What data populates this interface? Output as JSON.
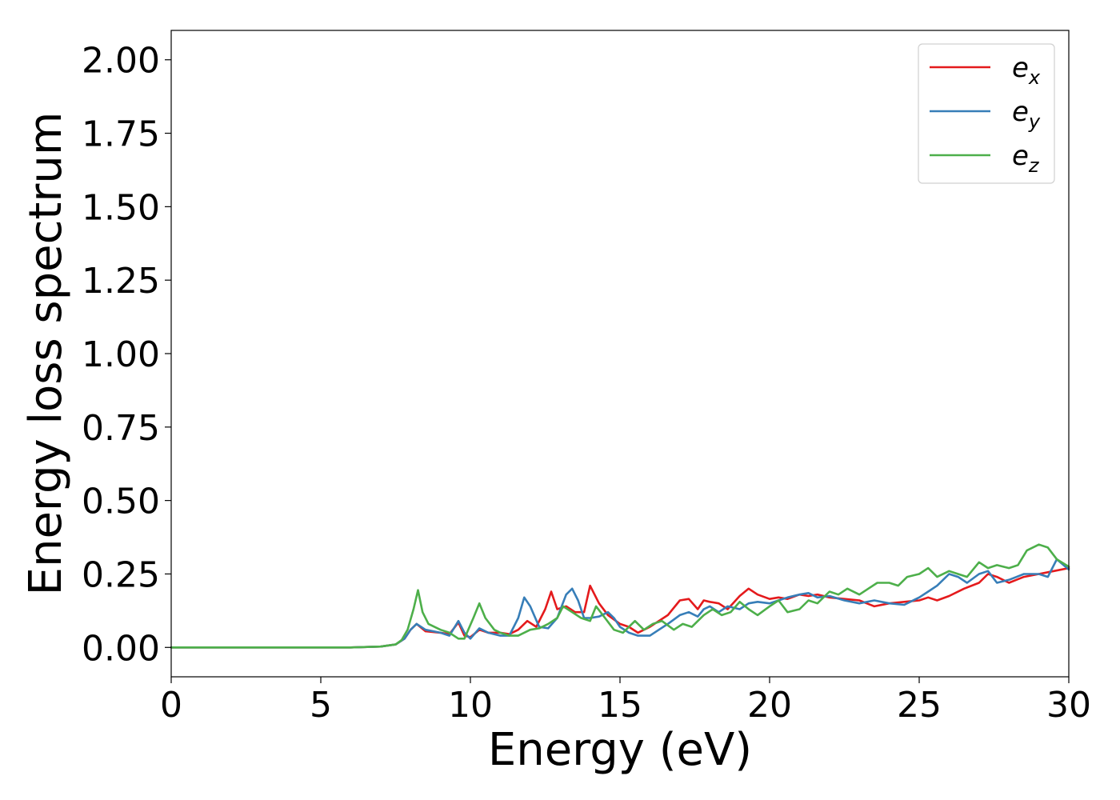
{
  "chart_data": {
    "type": "line",
    "title": "",
    "xlabel": "Energy (eV)",
    "ylabel": "Energy loss spectrum",
    "xlim": [
      0,
      30
    ],
    "ylim": [
      -0.1,
      2.1
    ],
    "xticks": [
      0,
      5,
      10,
      15,
      20,
      25,
      30
    ],
    "yticks": [
      0.0,
      0.25,
      0.5,
      0.75,
      1.0,
      1.25,
      1.5,
      1.75,
      2.0
    ],
    "xtick_labels": [
      "0",
      "5",
      "10",
      "15",
      "20",
      "25",
      "30"
    ],
    "ytick_labels": [
      "0.00",
      "0.25",
      "0.50",
      "0.75",
      "1.00",
      "1.25",
      "1.50",
      "1.75",
      "2.00"
    ],
    "grid": false,
    "legend_position": "top-right",
    "series": [
      {
        "name": "ex",
        "label_base": "e",
        "label_sub": "x",
        "color": "#e41a1c",
        "points": [
          [
            0,
            0
          ],
          [
            6,
            0
          ],
          [
            7,
            0.003
          ],
          [
            7.5,
            0.01
          ],
          [
            7.8,
            0.03
          ],
          [
            8.0,
            0.06
          ],
          [
            8.2,
            0.08
          ],
          [
            8.5,
            0.055
          ],
          [
            9,
            0.05
          ],
          [
            9.3,
            0.045
          ],
          [
            9.6,
            0.085
          ],
          [
            9.8,
            0.04
          ],
          [
            10,
            0.035
          ],
          [
            10.3,
            0.06
          ],
          [
            10.6,
            0.05
          ],
          [
            11,
            0.05
          ],
          [
            11.3,
            0.045
          ],
          [
            11.6,
            0.06
          ],
          [
            11.9,
            0.09
          ],
          [
            12.2,
            0.07
          ],
          [
            12.5,
            0.13
          ],
          [
            12.7,
            0.19
          ],
          [
            12.9,
            0.13
          ],
          [
            13.2,
            0.14
          ],
          [
            13.5,
            0.12
          ],
          [
            13.8,
            0.12
          ],
          [
            14,
            0.21
          ],
          [
            14.3,
            0.15
          ],
          [
            14.6,
            0.11
          ],
          [
            15,
            0.08
          ],
          [
            15.3,
            0.07
          ],
          [
            15.6,
            0.05
          ],
          [
            16,
            0.07
          ],
          [
            16.3,
            0.09
          ],
          [
            16.6,
            0.11
          ],
          [
            17,
            0.16
          ],
          [
            17.3,
            0.165
          ],
          [
            17.6,
            0.13
          ],
          [
            17.8,
            0.16
          ],
          [
            18,
            0.155
          ],
          [
            18.3,
            0.15
          ],
          [
            18.6,
            0.13
          ],
          [
            19,
            0.175
          ],
          [
            19.3,
            0.2
          ],
          [
            19.6,
            0.18
          ],
          [
            20,
            0.165
          ],
          [
            20.3,
            0.17
          ],
          [
            20.6,
            0.165
          ],
          [
            21,
            0.18
          ],
          [
            21.3,
            0.175
          ],
          [
            21.6,
            0.18
          ],
          [
            22,
            0.17
          ],
          [
            22.5,
            0.165
          ],
          [
            23,
            0.16
          ],
          [
            23.5,
            0.14
          ],
          [
            24,
            0.15
          ],
          [
            24.5,
            0.155
          ],
          [
            25,
            0.16
          ],
          [
            25.3,
            0.17
          ],
          [
            25.6,
            0.16
          ],
          [
            26,
            0.175
          ],
          [
            26.5,
            0.2
          ],
          [
            27,
            0.22
          ],
          [
            27.3,
            0.25
          ],
          [
            27.6,
            0.24
          ],
          [
            28,
            0.22
          ],
          [
            28.5,
            0.24
          ],
          [
            29,
            0.25
          ],
          [
            29.5,
            0.26
          ],
          [
            30,
            0.27
          ]
        ]
      },
      {
        "name": "ey",
        "label_base": "e",
        "label_sub": "y",
        "color": "#377eb8",
        "points": [
          [
            0,
            0
          ],
          [
            6,
            0
          ],
          [
            7,
            0.003
          ],
          [
            7.5,
            0.01
          ],
          [
            7.8,
            0.03
          ],
          [
            8.0,
            0.06
          ],
          [
            8.2,
            0.08
          ],
          [
            8.5,
            0.06
          ],
          [
            9,
            0.05
          ],
          [
            9.3,
            0.04
          ],
          [
            9.6,
            0.09
          ],
          [
            9.8,
            0.05
          ],
          [
            10,
            0.03
          ],
          [
            10.3,
            0.065
          ],
          [
            10.6,
            0.05
          ],
          [
            11,
            0.04
          ],
          [
            11.3,
            0.04
          ],
          [
            11.6,
            0.1
          ],
          [
            11.8,
            0.17
          ],
          [
            12,
            0.14
          ],
          [
            12.3,
            0.07
          ],
          [
            12.6,
            0.065
          ],
          [
            12.9,
            0.1
          ],
          [
            13.2,
            0.18
          ],
          [
            13.4,
            0.2
          ],
          [
            13.6,
            0.16
          ],
          [
            13.8,
            0.1
          ],
          [
            14,
            0.1
          ],
          [
            14.3,
            0.105
          ],
          [
            14.6,
            0.12
          ],
          [
            14.8,
            0.1
          ],
          [
            15,
            0.07
          ],
          [
            15.3,
            0.05
          ],
          [
            15.6,
            0.04
          ],
          [
            16,
            0.04
          ],
          [
            16.3,
            0.06
          ],
          [
            16.6,
            0.08
          ],
          [
            17,
            0.11
          ],
          [
            17.3,
            0.12
          ],
          [
            17.6,
            0.105
          ],
          [
            17.8,
            0.13
          ],
          [
            18,
            0.14
          ],
          [
            18.3,
            0.12
          ],
          [
            18.6,
            0.14
          ],
          [
            19,
            0.13
          ],
          [
            19.3,
            0.15
          ],
          [
            19.6,
            0.155
          ],
          [
            20,
            0.15
          ],
          [
            20.3,
            0.16
          ],
          [
            20.6,
            0.17
          ],
          [
            21,
            0.18
          ],
          [
            21.3,
            0.185
          ],
          [
            21.6,
            0.17
          ],
          [
            22,
            0.175
          ],
          [
            22.5,
            0.16
          ],
          [
            23,
            0.15
          ],
          [
            23.5,
            0.16
          ],
          [
            24,
            0.15
          ],
          [
            24.5,
            0.145
          ],
          [
            25,
            0.17
          ],
          [
            25.3,
            0.19
          ],
          [
            25.6,
            0.21
          ],
          [
            26,
            0.25
          ],
          [
            26.3,
            0.24
          ],
          [
            26.6,
            0.22
          ],
          [
            27,
            0.25
          ],
          [
            27.3,
            0.26
          ],
          [
            27.6,
            0.22
          ],
          [
            28,
            0.23
          ],
          [
            28.5,
            0.25
          ],
          [
            29,
            0.25
          ],
          [
            29.3,
            0.24
          ],
          [
            29.6,
            0.3
          ],
          [
            30,
            0.265
          ]
        ]
      },
      {
        "name": "ez",
        "label_base": "e",
        "label_sub": "z",
        "color": "#4daf4a",
        "points": [
          [
            0,
            0
          ],
          [
            6,
            0
          ],
          [
            7,
            0.003
          ],
          [
            7.5,
            0.01
          ],
          [
            7.7,
            0.025
          ],
          [
            7.9,
            0.06
          ],
          [
            8.1,
            0.13
          ],
          [
            8.25,
            0.195
          ],
          [
            8.4,
            0.12
          ],
          [
            8.6,
            0.08
          ],
          [
            9,
            0.06
          ],
          [
            9.3,
            0.05
          ],
          [
            9.6,
            0.03
          ],
          [
            9.8,
            0.03
          ],
          [
            10.1,
            0.1
          ],
          [
            10.3,
            0.15
          ],
          [
            10.5,
            0.1
          ],
          [
            10.8,
            0.06
          ],
          [
            11,
            0.05
          ],
          [
            11.3,
            0.04
          ],
          [
            11.6,
            0.04
          ],
          [
            12,
            0.06
          ],
          [
            12.3,
            0.065
          ],
          [
            12.6,
            0.08
          ],
          [
            12.9,
            0.1
          ],
          [
            13.1,
            0.14
          ],
          [
            13.4,
            0.12
          ],
          [
            13.7,
            0.1
          ],
          [
            14,
            0.09
          ],
          [
            14.2,
            0.14
          ],
          [
            14.5,
            0.1
          ],
          [
            14.8,
            0.06
          ],
          [
            15.1,
            0.05
          ],
          [
            15.5,
            0.09
          ],
          [
            15.8,
            0.06
          ],
          [
            16.1,
            0.08
          ],
          [
            16.4,
            0.09
          ],
          [
            16.8,
            0.06
          ],
          [
            17.1,
            0.08
          ],
          [
            17.4,
            0.07
          ],
          [
            17.8,
            0.11
          ],
          [
            18.1,
            0.13
          ],
          [
            18.4,
            0.11
          ],
          [
            18.7,
            0.12
          ],
          [
            19,
            0.155
          ],
          [
            19.3,
            0.13
          ],
          [
            19.6,
            0.11
          ],
          [
            20,
            0.14
          ],
          [
            20.3,
            0.16
          ],
          [
            20.6,
            0.12
          ],
          [
            21,
            0.13
          ],
          [
            21.3,
            0.16
          ],
          [
            21.6,
            0.15
          ],
          [
            22,
            0.19
          ],
          [
            22.3,
            0.18
          ],
          [
            22.6,
            0.2
          ],
          [
            23,
            0.18
          ],
          [
            23.3,
            0.2
          ],
          [
            23.6,
            0.22
          ],
          [
            24,
            0.22
          ],
          [
            24.3,
            0.21
          ],
          [
            24.6,
            0.24
          ],
          [
            25,
            0.25
          ],
          [
            25.3,
            0.27
          ],
          [
            25.6,
            0.24
          ],
          [
            26,
            0.26
          ],
          [
            26.3,
            0.25
          ],
          [
            26.6,
            0.24
          ],
          [
            27,
            0.29
          ],
          [
            27.3,
            0.27
          ],
          [
            27.6,
            0.28
          ],
          [
            28,
            0.27
          ],
          [
            28.3,
            0.28
          ],
          [
            28.6,
            0.33
          ],
          [
            29,
            0.35
          ],
          [
            29.3,
            0.34
          ],
          [
            29.6,
            0.3
          ],
          [
            30,
            0.275
          ]
        ]
      }
    ]
  }
}
